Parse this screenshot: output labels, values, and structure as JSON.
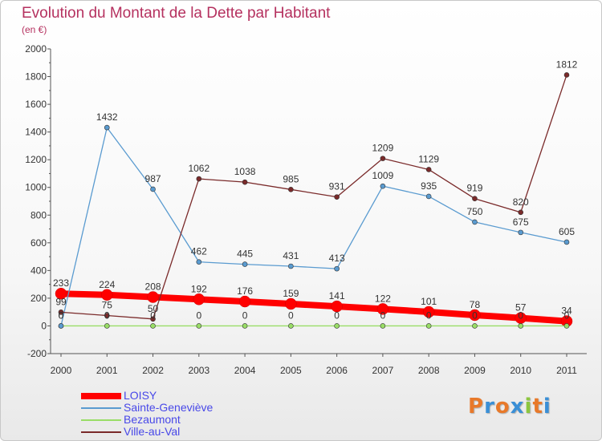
{
  "title": "Evolution du Montant de la Dette par Habitant",
  "subtitle": "(en €)",
  "logo": {
    "text": "Proxiti",
    "colors": [
      "#e8792a",
      "#3a8fd6",
      "#e8792a",
      "#3a8fd6",
      "#8cc63f",
      "#e8792a",
      "#3a8fd6"
    ]
  },
  "colors": {
    "title": "#b5315f",
    "axis_text": "#333333",
    "legend_text": "#4848e8"
  },
  "chart_data": {
    "type": "line",
    "title": "Evolution du Montant de la Dette par Habitant",
    "ylabel": "(en €)",
    "xlabel": "",
    "x": [
      "2000",
      "2001",
      "2002",
      "2003",
      "2004",
      "2005",
      "2006",
      "2007",
      "2008",
      "2009",
      "2010",
      "2011"
    ],
    "ylim": [
      -200,
      2000
    ],
    "yticks": [
      -200,
      0,
      200,
      400,
      600,
      800,
      1000,
      1200,
      1400,
      1600,
      1800,
      2000
    ],
    "grid": false,
    "legend": "bottom-left",
    "series": [
      {
        "name": "LOISY",
        "color": "#ff0000",
        "style": "thick",
        "values": [
          233,
          224,
          208,
          192,
          176,
          159,
          141,
          122,
          101,
          78,
          57,
          34
        ],
        "labels": [
          "233",
          "224",
          "208",
          "192",
          "176",
          "159",
          "141",
          "122",
          "101",
          "78",
          "57",
          "34"
        ]
      },
      {
        "name": "Sainte-Geneviève",
        "color": "#5a9bd0",
        "style": "thin",
        "values": [
          0,
          1432,
          987,
          462,
          445,
          431,
          413,
          1009,
          935,
          750,
          675,
          605
        ],
        "labels": [
          "0",
          "1432",
          "987",
          "462",
          "445",
          "431",
          "413",
          "1009",
          "935",
          "750",
          "675",
          "605"
        ]
      },
      {
        "name": "Bezaumont",
        "color": "#99dd66",
        "style": "thin",
        "values": [
          0,
          0,
          0,
          0,
          0,
          0,
          0,
          0,
          0,
          0,
          0,
          0
        ],
        "labels": [
          "0",
          "0",
          "0",
          "0",
          "0",
          "0",
          "0",
          "0",
          "0",
          "0",
          "0",
          "0"
        ]
      },
      {
        "name": "Ville-au-Val",
        "color": "#7a2a2a",
        "style": "thin",
        "values": [
          99,
          75,
          50,
          1062,
          1038,
          985,
          931,
          1209,
          1129,
          919,
          820,
          1812
        ],
        "labels": [
          "99",
          "75",
          "50",
          "1062",
          "1038",
          "985",
          "931",
          "1209",
          "1129",
          "919",
          "820",
          "1812"
        ]
      }
    ]
  }
}
